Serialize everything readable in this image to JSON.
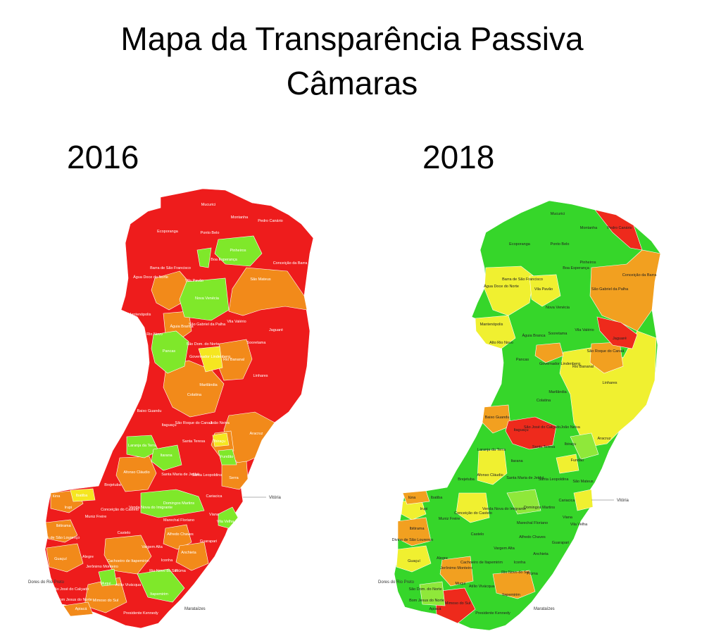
{
  "header": {
    "title_line1": "Mapa da Transparência Passiva",
    "title_line2": "Câmaras"
  },
  "maps": [
    {
      "year": "2016",
      "colors": {
        "red": "#ee1c1c",
        "orange": "#f28a1a",
        "green": "#7fe82a",
        "yellow": "#f5e620"
      },
      "labels": [
        "Mucurici",
        "Montanha",
        "Pedro Canário",
        "Ecoporanga",
        "Ponto Belo",
        "Pinheiros",
        "Boa Esperança",
        "Conceição da Barra",
        "Barra de São Francisco",
        "Água Doce do Norte",
        "Vila Pavão",
        "São Mateus",
        "Nova Venécia",
        "Mantenópolis",
        "Alto Rio Novo",
        "Águia Branca",
        "São Gabriel da Palha",
        "Vila Valério",
        "Jaguaré",
        "Pancas",
        "São Dom. do Norte",
        "Sooretama",
        "Governador Lindenberg",
        "Rio Bananal",
        "Linhares",
        "Marilândia",
        "Colatina",
        "Baixo Guandu",
        "São Roque do Canaã",
        "Itaguaçu",
        "João Neiva",
        "Aracruz",
        "Laranja da Terra",
        "Itarana",
        "Santa Teresa",
        "Ibiraçu",
        "Fundão",
        "Afonso Cláudio",
        "Santa Maria de Jetibá",
        "Santa Leopoldina",
        "Serra",
        "Brejetuba",
        "Iúna",
        "Ibatiba",
        "Irupi",
        "Conceição do Castelo",
        "Venda Nova do Imigrante",
        "Muniz Freire",
        "Domingos Martins",
        "Cariacica",
        "Viana",
        "Vila Velha",
        "Ibitirama",
        "Divino de São Lourenço",
        "Castelo",
        "Marechal Floriano",
        "Alfredo Chaves",
        "Vargem Alta",
        "Guarapari",
        "Guaçuí",
        "Alegre",
        "Jerônimo Monteiro",
        "Cachoeiro de Itapemirim",
        "Anchieta",
        "Iconha",
        "Rio Novo do Sul",
        "Piúma",
        "Muqui",
        "Atílio Vivácqua",
        "São José do Calçado",
        "Bom Jesus do Norte",
        "Apiacá",
        "Mimoso do Sul",
        "Itapemirim",
        "Presidente Kennedy"
      ]
    },
    {
      "year": "2018",
      "colors": {
        "red": "#ee2a1c",
        "orange": "#f2a020",
        "green": "#36d62a",
        "lightgreen": "#8fe83a",
        "yellow": "#f0f030"
      },
      "labels": [
        "Mucurici",
        "Montanha",
        "Pedro Canário",
        "Ecoporanga",
        "Ponto Belo",
        "Pinheiros",
        "Boa Esperança",
        "Conceição da Barra",
        "Barra de São Francisco",
        "Água Doce do Norte",
        "Vila Pavão",
        "São Gabriel da Palha",
        "Nova Venécia",
        "Mantenópolis",
        "Alto Rio Novo",
        "Águia Branca",
        "Sooretama",
        "Vila Valério",
        "Jaguaré",
        "Pancas",
        "Governador Lindenberg",
        "Rio Bananal",
        "São Roque do Canaã",
        "Linhares",
        "Marilândia",
        "Colatina",
        "Baixo Guandu",
        "Itaguaçu",
        "São José do Calçado",
        "João Neiva",
        "Aracruz",
        "Laranja da Terra",
        "Itarana",
        "Santa Teresa",
        "Ibiraçu",
        "Fundão",
        "Afonso Cláudio",
        "Santa Maria de Jetibá",
        "Santa Leopoldina",
        "São Mateus",
        "Brejetuba",
        "Iúna",
        "Ibatiba",
        "Irupi",
        "Conceição do Castelo",
        "Venda Nova do Imigrante",
        "Muniz Freire",
        "Domingos Martins",
        "Marechal Floriano",
        "Cariacica",
        "Viana",
        "Vila Velha",
        "Ibitirama",
        "Divino de São Lourenço",
        "Castelo",
        "Alfredo Chaves",
        "Vargem Alta",
        "Guarapari",
        "Guaçuí",
        "Alegre",
        "Jerônimo Monteiro",
        "Cachoeiro de Itapemirim",
        "Anchieta",
        "Iconha",
        "Rio Novo do Sul",
        "Piúma",
        "Muqui",
        "Atílio Vivácqua",
        "São Dom. do Norte",
        "Bom Jesus do Norte",
        "Apiacá",
        "Mimoso do Sul",
        "Itapemirim",
        "Presidente Kennedy"
      ]
    }
  ],
  "reference_places": {
    "vitoria": "Vitória",
    "dores_do_rio_preto": "Dores do Rio Preto",
    "marataizes": "Marataízes"
  }
}
